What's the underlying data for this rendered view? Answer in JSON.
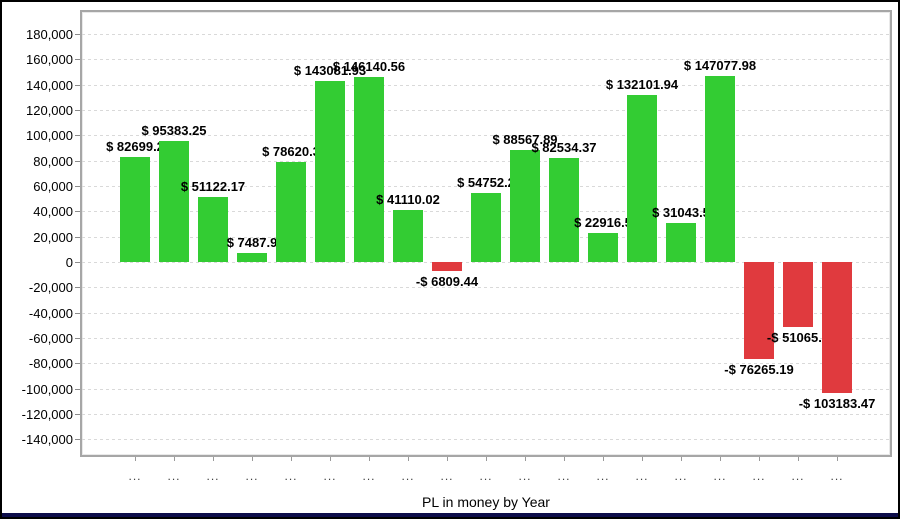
{
  "window": {
    "background": "#ffffff",
    "border_color": "#000000",
    "bottom_strip_color": "#0d0d4a"
  },
  "chart_data": {
    "type": "bar",
    "title": "PL in money by Year",
    "categories": [
      "...",
      "...",
      "...",
      "...",
      "...",
      "...",
      "...",
      "...",
      "...",
      "...",
      "...",
      "...",
      "...",
      "...",
      "...",
      "...",
      "...",
      "...",
      "..."
    ],
    "values": [
      82699.2,
      95383.25,
      51122.17,
      7487.9,
      78620.3,
      143081.93,
      146140.56,
      41110.02,
      -6809.44,
      54752.2,
      88567.89,
      82534.37,
      22916.5,
      132101.94,
      31043.5,
      147077.98,
      -76265.19,
      -51065.0,
      -103183.47
    ],
    "bar_labels": [
      "$ 82699.2",
      "$ 95383.25",
      "$ 51122.17",
      "$ 7487.9",
      "$ 78620.3",
      "$ 143081.93",
      "$ 146140.56",
      "$ 41110.02",
      "-$ 6809.44",
      "$ 54752.2",
      "$ 88567.89",
      "$ 82534.37",
      "$ 22916.5",
      "$ 132101.94",
      "$ 31043.5",
      "$ 147077.98",
      "-$ 76265.19",
      "-$ 51065.0",
      "-$ 103183.47"
    ],
    "y_ticks": {
      "values": [
        180000,
        160000,
        140000,
        120000,
        100000,
        80000,
        60000,
        40000,
        20000,
        0,
        -20000,
        -40000,
        -60000,
        -80000,
        -100000,
        -120000,
        -140000
      ],
      "labels": [
        "180,000",
        "160,000",
        "140,000",
        "120,000",
        "100,000",
        "80,000",
        "60,000",
        "40,000",
        "20,000",
        "0",
        "-20,000",
        "-40,000",
        "-60,000",
        "-80,000",
        "-100,000",
        "-120,000",
        "-140,000"
      ]
    },
    "ylim": [
      -155000,
      197000
    ],
    "xlabel": "",
    "ylabel": "",
    "legend": "none",
    "grid": "horizontal-dashed",
    "colors": {
      "positive": "#33cc33",
      "negative": "#e03a3e",
      "grid": "#d9d9d9",
      "plot_border": "#a6a6a6",
      "axis_text": "#000000"
    }
  }
}
